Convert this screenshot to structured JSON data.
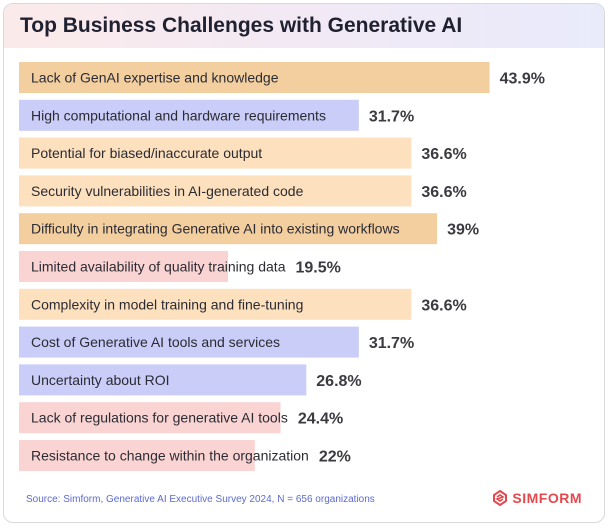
{
  "colors": {
    "orange": "#f6d2a6",
    "light_orange": "#fde3c2",
    "blue": "#c9cdf8",
    "pink": "#f9d4d3",
    "text": "#2b2b33",
    "value": "#3a3a40"
  },
  "logo": {
    "icon": "simform-logo-icon",
    "text": "SIMFORM"
  },
  "chart_data": {
    "type": "bar",
    "orientation": "horizontal",
    "title": "Top Business Challenges with Generative AI",
    "source": "Source: Simform, Generative AI Executive Survey 2024, N = 656 organizations",
    "xlim": [
      0,
      50
    ],
    "grid": false,
    "bars": [
      {
        "label": "Lack of GenAI expertise and knowledge",
        "value": 43.9,
        "value_label": "43.9%",
        "color": "#f3cfa0"
      },
      {
        "label": "High computational and hardware requirements",
        "value": 31.7,
        "value_label": "31.7%",
        "color": "#c9cdf8"
      },
      {
        "label": "Potential for biased/inaccurate output",
        "value": 36.6,
        "value_label": "36.6%",
        "color": "#fde0bd"
      },
      {
        "label": "Security vulnerabilities in AI-generated code",
        "value": 36.6,
        "value_label": "36.6%",
        "color": "#fde0bd"
      },
      {
        "label": "Difficulty in integrating Generative AI into existing workflows",
        "value": 39,
        "value_label": "39%",
        "color": "#f3cfa0"
      },
      {
        "label": "Limited availability of quality training data",
        "value": 19.5,
        "value_label": "19.5%",
        "color": "#f9d4d3"
      },
      {
        "label": "Complexity in model training and fine-tuning",
        "value": 36.6,
        "value_label": "36.6%",
        "color": "#fde0bd"
      },
      {
        "label": "Cost of Generative AI tools and services",
        "value": 31.7,
        "value_label": "31.7%",
        "color": "#c9cdf8"
      },
      {
        "label": "Uncertainty about ROI",
        "value": 26.8,
        "value_label": "26.8%",
        "color": "#c9cdf8"
      },
      {
        "label": "Lack of regulations for generative AI tools",
        "value": 24.4,
        "value_label": "24.4%",
        "color": "#f9d4d3"
      },
      {
        "label": "Resistance to change within the organization",
        "value": 22,
        "value_label": "22%",
        "color": "#f9d4d3"
      }
    ]
  }
}
